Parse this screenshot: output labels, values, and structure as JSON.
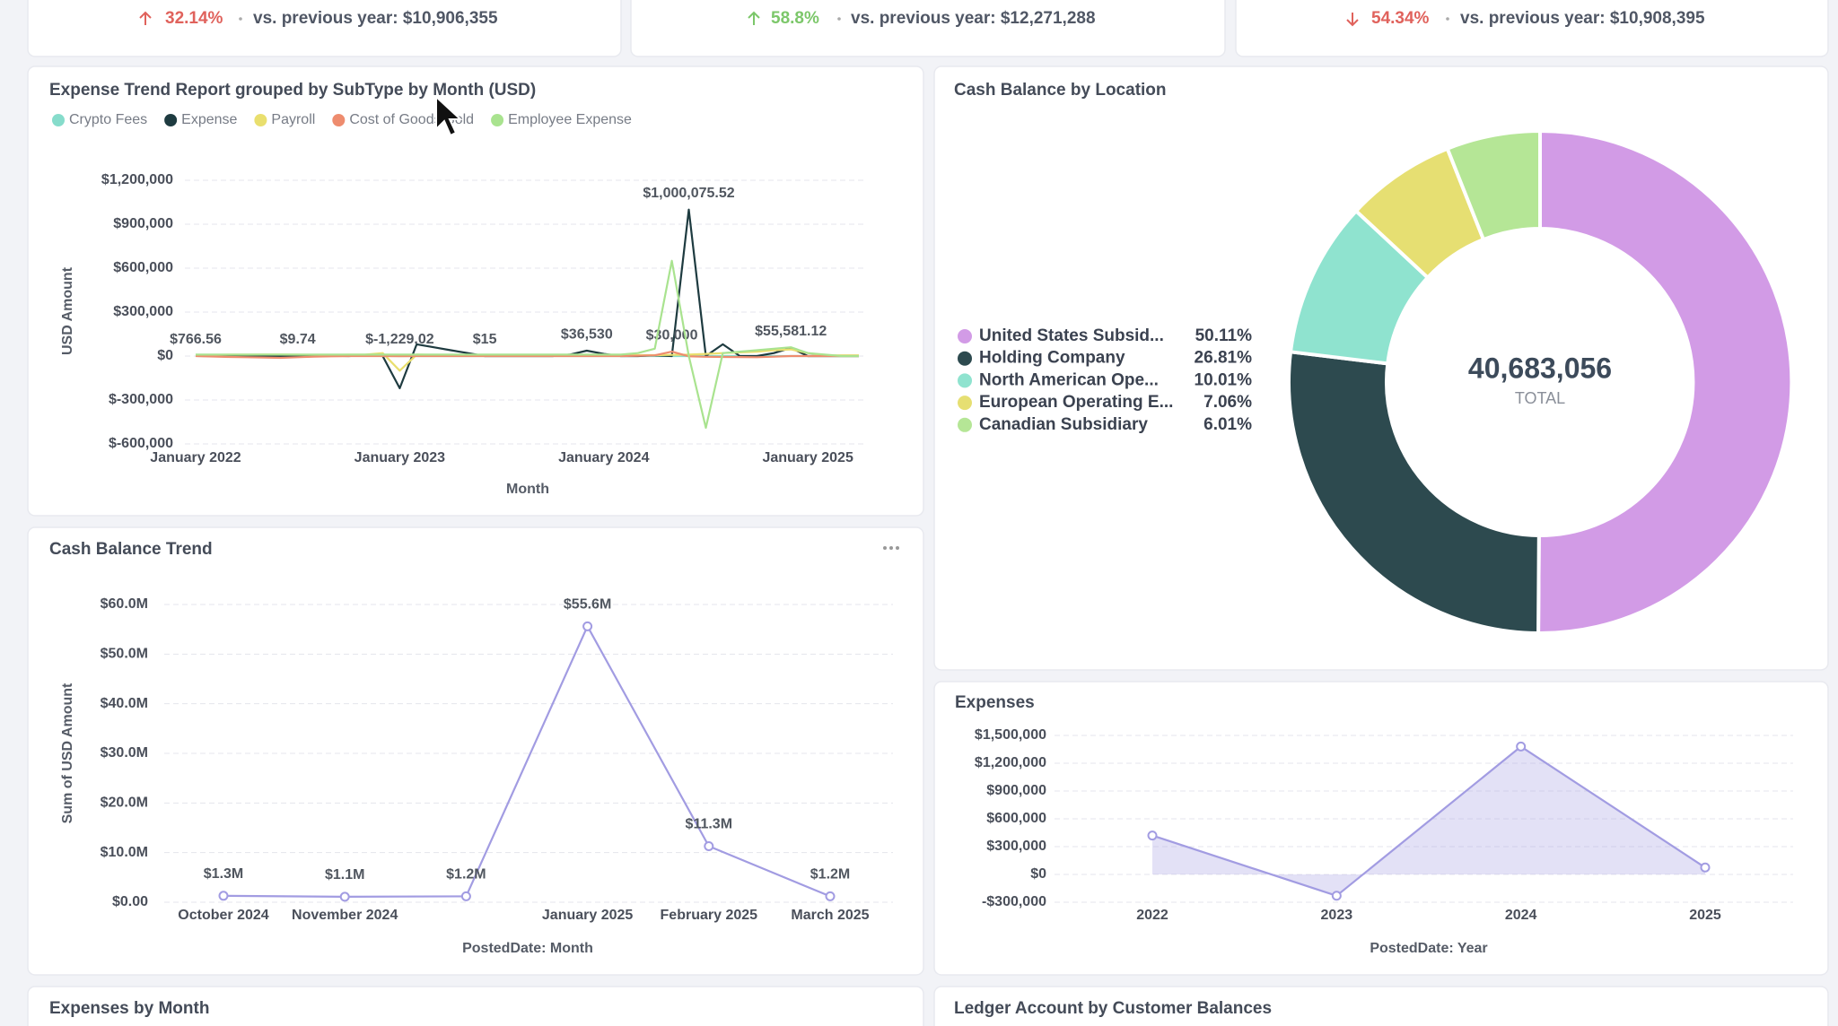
{
  "kpis": [
    {
      "change": "32.14%",
      "comparison": "vs. previous year: $10,906,355"
    },
    {
      "change": "58.8%",
      "comparison": "vs. previous year: $12,271,288"
    },
    {
      "change": "54.34%",
      "comparison": "vs. previous year: $10,908,395"
    }
  ],
  "chart_data": [
    {
      "type": "line",
      "title": "Expense Trend Report grouped by SubType by Month (USD)",
      "y_axis_label": "USD Amount",
      "x_axis_label": "Month",
      "categories": [
        "January 2022",
        null,
        null,
        null,
        null,
        null,
        null,
        null,
        null,
        null,
        null,
        null,
        "January 2023",
        null,
        null,
        null,
        null,
        null,
        null,
        null,
        null,
        null,
        null,
        null,
        "January 2024",
        null,
        null,
        null,
        null,
        null,
        null,
        null,
        null,
        null,
        null,
        null,
        "January 2025",
        null,
        null,
        null
      ],
      "ylim": [
        -600000,
        1200000
      ],
      "yticks": [
        {
          "value": -600000,
          "label": "$-600,000"
        },
        {
          "value": -300000,
          "label": "$-300,000"
        },
        {
          "value": 0,
          "label": "$0"
        },
        {
          "value": 300000,
          "label": "$300,000"
        },
        {
          "value": 600000,
          "label": "$600,000"
        },
        {
          "value": 900000,
          "label": "$900,000"
        },
        {
          "value": 1200000,
          "label": "$1,200,000"
        }
      ],
      "grid": true,
      "series": [
        {
          "name": "Crypto Fees",
          "color": "#86dccb",
          "values": [
            2000,
            2100,
            1800,
            1500,
            1200,
            1000,
            900,
            800,
            700,
            600,
            500,
            400,
            300,
            300,
            200,
            200,
            150,
            150,
            100,
            100,
            100,
            100,
            100,
            100,
            100,
            100,
            100,
            100,
            100,
            100,
            100,
            100,
            100,
            100,
            100,
            100,
            100,
            100,
            100,
            100
          ]
        },
        {
          "name": "Expense",
          "color": "#1e3b40",
          "values": [
            766.56,
            0,
            5000,
            3000,
            0,
            0,
            9.74,
            0,
            2000,
            0,
            5000,
            0,
            -220000,
            80000,
            60000,
            40000,
            20000,
            15,
            0,
            0,
            0,
            0,
            10000,
            36530,
            15000,
            0,
            0,
            5000,
            0,
            1000075.52,
            0,
            80000,
            0,
            0,
            20000,
            55581.12,
            0,
            0,
            0,
            0
          ],
          "value_labels": [
            "$766.56",
            null,
            null,
            null,
            null,
            null,
            "$9.74",
            null,
            null,
            null,
            null,
            null,
            null,
            null,
            null,
            null,
            null,
            "$15",
            null,
            null,
            null,
            null,
            null,
            "$36,530",
            null,
            null,
            null,
            null,
            null,
            "$1,000,075.52",
            null,
            null,
            null,
            null,
            null,
            "$55,581.12",
            null,
            null,
            null,
            null
          ]
        },
        {
          "name": "Payroll",
          "color": "#e9df6e",
          "values": [
            8000,
            8000,
            9000,
            9000,
            10000,
            10000,
            9000,
            8000,
            8000,
            9000,
            10000,
            20000,
            -100000,
            10000,
            8000,
            8000,
            7000,
            7000,
            6000,
            6000,
            6000,
            5000,
            5000,
            5000,
            5000,
            5000,
            6000,
            6000,
            8000,
            10000,
            15000,
            20000,
            25000,
            30000,
            40000,
            45000,
            20000,
            5000,
            5000,
            5000
          ]
        },
        {
          "name": "Cost of Goods Sold",
          "color": "#ee8c6e",
          "values": [
            0,
            -3000,
            -6000,
            -8000,
            -10000,
            -12000,
            -8000,
            -4000,
            -2000,
            0,
            0,
            0,
            -1229.02,
            0,
            0,
            0,
            0,
            0,
            0,
            0,
            0,
            0,
            0,
            0,
            0,
            0,
            2000,
            5000,
            30000,
            -2000,
            -5000,
            -6000,
            -7000,
            -8000,
            -4000,
            0,
            0,
            0,
            0,
            0
          ],
          "value_labels": [
            null,
            null,
            null,
            null,
            null,
            null,
            null,
            null,
            null,
            null,
            null,
            null,
            "$-1,229.02",
            null,
            null,
            null,
            null,
            null,
            null,
            null,
            null,
            null,
            null,
            null,
            null,
            null,
            null,
            null,
            "$30,000",
            null,
            null,
            null,
            null,
            null,
            null,
            null,
            null,
            null,
            null,
            null
          ]
        },
        {
          "name": "Employee Expense",
          "color": "#a9e38f",
          "values": [
            10000,
            10000,
            10000,
            10000,
            10000,
            10000,
            10000,
            10000,
            10000,
            10000,
            10000,
            10000,
            10000,
            10000,
            10000,
            10000,
            10000,
            10000,
            10000,
            10000,
            10000,
            10000,
            10000,
            10000,
            10000,
            10000,
            20000,
            50000,
            650000,
            0,
            -490000,
            20000,
            30000,
            40000,
            50000,
            60000,
            20000,
            10000,
            0,
            0
          ]
        }
      ]
    },
    {
      "type": "donut",
      "title": "Cash Balance by Location",
      "categories": [
        "United States Subsid...",
        "Holding Company",
        "North American Ope...",
        "European Operating E...",
        "Canadian Subsidiary"
      ],
      "values": [
        50.11,
        26.81,
        10.01,
        7.06,
        6.01
      ],
      "value_labels": [
        "50.11%",
        "26.81%",
        "10.01%",
        "7.06%",
        "6.01%"
      ],
      "colors": [
        "#d29be6",
        "#2d4a4f",
        "#8fe3cf",
        "#e6df72",
        "#b5e696"
      ],
      "total": {
        "value": 40683056,
        "label": "40,683,056"
      },
      "total_label": "TOTAL"
    },
    {
      "type": "line",
      "title": "Cash Balance Trend",
      "y_axis_label": "Sum of USD Amount",
      "x_axis_label": "PostedDate: Month",
      "categories": [
        "October 2024",
        "November 2024",
        null,
        "January 2025",
        "February 2025",
        "March 2025"
      ],
      "values": [
        1300000,
        1100000,
        1200000,
        55600000,
        11300000,
        1200000
      ],
      "value_labels": [
        "$1.3M",
        "$1.1M",
        "$1.2M",
        "$55.6M",
        "$11.3M",
        "$1.2M"
      ],
      "color": "#a29ce2",
      "ylim": [
        0,
        60000000
      ],
      "yticks": [
        {
          "value": 0,
          "label": "$0.00"
        },
        {
          "value": 10000000,
          "label": "$10.0M"
        },
        {
          "value": 20000000,
          "label": "$20.0M"
        },
        {
          "value": 30000000,
          "label": "$30.0M"
        },
        {
          "value": 40000000,
          "label": "$40.0M"
        },
        {
          "value": 50000000,
          "label": "$50.0M"
        },
        {
          "value": 60000000,
          "label": "$60.0M"
        }
      ],
      "grid": true
    },
    {
      "type": "area",
      "title": "Expenses",
      "x_axis_label": "PostedDate: Year",
      "categories": [
        "2022",
        "2023",
        "2024",
        "2025"
      ],
      "values": [
        420000,
        -230000,
        1380000,
        75000
      ],
      "color": "#a29ce2",
      "ylim": [
        -300000,
        1500000
      ],
      "yticks": [
        {
          "value": -300000,
          "label": "-$300,000"
        },
        {
          "value": 0,
          "label": "$0"
        },
        {
          "value": 300000,
          "label": "$300,000"
        },
        {
          "value": 600000,
          "label": "$600,000"
        },
        {
          "value": 900000,
          "label": "$900,000"
        },
        {
          "value": 1200000,
          "label": "$1,200,000"
        },
        {
          "value": 1500000,
          "label": "$1,500,000"
        }
      ],
      "grid": true
    }
  ],
  "panels": [
    {
      "title": "Expenses by Month"
    },
    {
      "title": "Ledger Account by Customer Balances"
    }
  ]
}
